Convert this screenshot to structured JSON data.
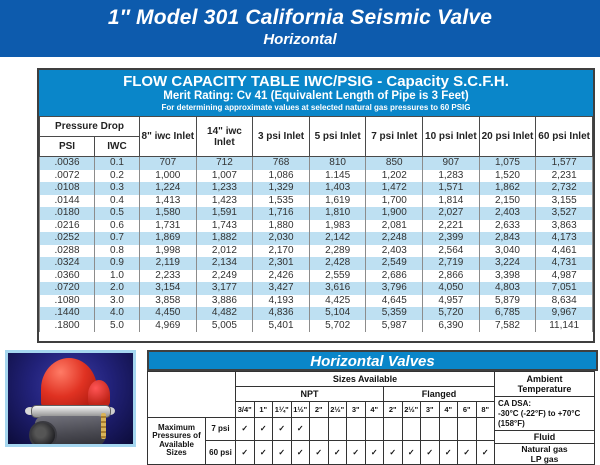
{
  "colors": {
    "banner_blue": "#0d5bad",
    "header_blue": "#0a86c9",
    "row_highlight": "#bee0f2",
    "valve_red": "#d42a1f",
    "photo_border": "#a5d6ef"
  },
  "banner": {
    "title": "1″ Model 301 California Seismic Valve",
    "subtitle": "Horizontal"
  },
  "flow_table": {
    "title": "FLOW CAPACITY TABLE IWC/PSIG - Capacity S.C.F.H.",
    "subtitle": "Merit Rating: Cv 41 (Equivalent Length of Pipe is 3 Feet)",
    "note": "For determining approximate values at selected natural gas pressures to 60 PSIG",
    "pressure_drop_label": "Pressure Drop",
    "sub_headers": [
      "PSI",
      "IWC"
    ],
    "inlet_headers": [
      "8\" iwc Inlet",
      "14\" iwc Inlet",
      "3 psi Inlet",
      "5 psi Inlet",
      "7 psi Inlet",
      "10 psi Inlet",
      "20 psi Inlet",
      "60 psi Inlet"
    ],
    "rows": [
      {
        "psi": ".0036",
        "iwc": "0.1",
        "values": [
          "707",
          "712",
          "768",
          "810",
          "850",
          "907",
          "1,075",
          "1,577"
        ]
      },
      {
        "psi": ".0072",
        "iwc": "0.2",
        "values": [
          "1,000",
          "1,007",
          "1,086",
          "1.145",
          "1,202",
          "1,283",
          "1,520",
          "2,231"
        ]
      },
      {
        "psi": ".0108",
        "iwc": "0.3",
        "values": [
          "1,224",
          "1,233",
          "1,329",
          "1,403",
          "1,472",
          "1,571",
          "1,862",
          "2,732"
        ]
      },
      {
        "psi": ".0144",
        "iwc": "0.4",
        "values": [
          "1,413",
          "1,423",
          "1,535",
          "1,619",
          "1,700",
          "1,814",
          "2,150",
          "3,155"
        ]
      },
      {
        "psi": ".0180",
        "iwc": "0.5",
        "values": [
          "1,580",
          "1,591",
          "1,716",
          "1,810",
          "1,900",
          "2,027",
          "2,403",
          "3,527"
        ]
      },
      {
        "psi": ".0216",
        "iwc": "0.6",
        "values": [
          "1,731",
          "1,743",
          "1,880",
          "1,983",
          "2,081",
          "2,221",
          "2,633",
          "3,863"
        ]
      },
      {
        "psi": ".0252",
        "iwc": "0.7",
        "values": [
          "1,869",
          "1,882",
          "2,030",
          "2,142",
          "2,248",
          "2,399",
          "2,843",
          "4,173"
        ]
      },
      {
        "psi": ".0288",
        "iwc": "0.8",
        "values": [
          "1,998",
          "2,012",
          "2,170",
          "2,289",
          "2,403",
          "2,564",
          "3,040",
          "4,461"
        ]
      },
      {
        "psi": ".0324",
        "iwc": "0.9",
        "values": [
          "2,119",
          "2,134",
          "2,301",
          "2,428",
          "2,549",
          "2,719",
          "3,224",
          "4,731"
        ]
      },
      {
        "psi": ".0360",
        "iwc": "1.0",
        "values": [
          "2,233",
          "2,249",
          "2,426",
          "2,559",
          "2,686",
          "2,866",
          "3,398",
          "4,987"
        ]
      },
      {
        "psi": ".0720",
        "iwc": "2.0",
        "values": [
          "3,154",
          "3,177",
          "3,427",
          "3,616",
          "3,796",
          "4,050",
          "4,803",
          "7,051"
        ]
      },
      {
        "psi": ".1080",
        "iwc": "3.0",
        "values": [
          "3,858",
          "3,886",
          "4,193",
          "4,425",
          "4,645",
          "4,957",
          "5,879",
          "8,634"
        ]
      },
      {
        "psi": ".1440",
        "iwc": "4.0",
        "values": [
          "4,450",
          "4,482",
          "4,836",
          "5,104",
          "5,359",
          "5,720",
          "6,785",
          "9,967"
        ]
      },
      {
        "psi": ".1800",
        "iwc": "5.0",
        "values": [
          "4,969",
          "5,005",
          "5,401",
          "5,702",
          "5,987",
          "6,390",
          "7,582",
          "11,141"
        ]
      }
    ]
  },
  "valves_table": {
    "title": "Horizontal Valves",
    "sizes_available_label": "Sizes Available",
    "npt_label": "NPT",
    "flanged_label": "Flanged",
    "npt_sizes": [
      "3/4\"",
      "1\"",
      "1¼\"",
      "1½\"",
      "2\"",
      "2½\"",
      "3\"",
      "4\""
    ],
    "flanged_sizes": [
      "2\"",
      "2½\"",
      "3\"",
      "4\"",
      "6\"",
      "8\""
    ],
    "row_group_label": "Maximum Pressures of Available Sizes",
    "check_glyph": "✓",
    "pressure_rows": [
      {
        "label": "7 psi",
        "checks": [
          1,
          1,
          1,
          1,
          0,
          0,
          0,
          0,
          0,
          0,
          0,
          0,
          0,
          0
        ]
      },
      {
        "label": "60 psi",
        "checks": [
          1,
          1,
          1,
          1,
          1,
          1,
          1,
          1,
          1,
          1,
          1,
          1,
          1,
          1
        ]
      }
    ],
    "ambient": {
      "header": "Ambient Temperature",
      "cert": "CA DSA:",
      "range": "-30°C (-22°F) to +70°C (158°F)"
    },
    "fluid": {
      "header": "Fluid",
      "values": [
        "Natural gas",
        "LP gas"
      ]
    }
  }
}
